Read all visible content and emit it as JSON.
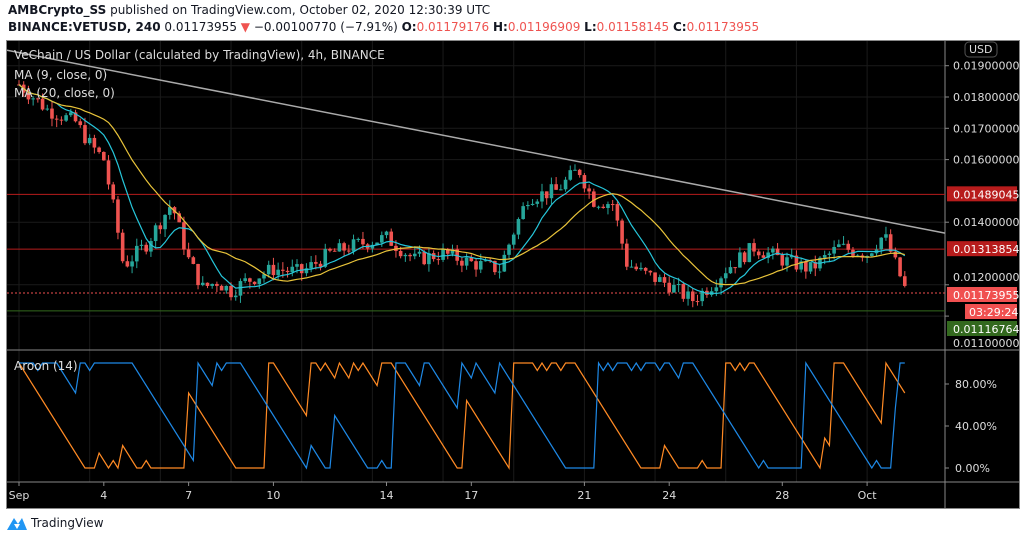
{
  "header": {
    "publisher": "AMBCrypto_SS",
    "published_text": "published on TradingView.com, October 02, 2020 12:30:39 UTC",
    "symbol": "BINANCE:VETUSD, 240",
    "last": "0.01173955",
    "change": "−0.00100770 (−7.91%)",
    "o_label": "O:",
    "o": "0.01179176",
    "h_label": "H:",
    "h": "0.01196909",
    "l_label": "L:",
    "l": "0.01158145",
    "c_label": "C:",
    "c": "0.01173955"
  },
  "chart_data": {
    "type": "candlestick",
    "title": "VeChain / US Dollar (calculated by TradingView), 4h, BINANCE",
    "indicators": [
      "MA (9, close, 0)",
      "MA (20, close, 0)"
    ],
    "aroon_label": "Aroon (14)",
    "currency": "USD",
    "price_ticks": [
      0.019,
      0.018,
      0.017,
      0.016,
      0.014,
      0.012,
      0.011
    ],
    "price_tick_labels": [
      "0.01900000",
      "0.01800000",
      "0.01700000",
      "0.01600000",
      "0.01400000",
      "0.01200000",
      "0.01100000"
    ],
    "levels": [
      {
        "value": 0.01489045,
        "label": "0.01489045",
        "color": "#b71c1c"
      },
      {
        "value": 0.01313854,
        "label": "0.01313854",
        "color": "#b71c1c"
      },
      {
        "value": 0.01173955,
        "label": "0.01173955",
        "color": "#f05050"
      },
      {
        "value": 0.01116764,
        "label": "0.01116764",
        "color": "#33691e"
      }
    ],
    "countdown": "03:29:24",
    "trendline": {
      "from": {
        "day": 0,
        "price": 0.0194
      },
      "to": {
        "day": 32.3,
        "price": 0.01365
      }
    },
    "close_path_days": [
      0,
      1,
      2,
      2.5,
      3,
      3.4,
      3.7,
      4.5,
      5.4,
      6,
      6.5,
      7,
      7.5,
      8,
      9,
      10,
      11,
      12,
      13,
      14,
      15,
      16,
      17,
      17.5,
      18,
      19,
      19.8,
      20.3,
      21,
      21.5,
      22,
      23,
      23.8,
      24.5,
      25,
      26,
      27,
      28,
      29,
      30,
      30.6,
      31.4
    ],
    "close_path_prices": [
      0.0184,
      0.0176,
      0.0172,
      0.0165,
      0.016,
      0.0142,
      0.0126,
      0.0133,
      0.0146,
      0.0128,
      0.0119,
      0.0121,
      0.0118,
      0.0121,
      0.0125,
      0.0124,
      0.013,
      0.0133,
      0.0135,
      0.0128,
      0.013,
      0.0127,
      0.0125,
      0.0137,
      0.0148,
      0.015,
      0.0157,
      0.0147,
      0.0146,
      0.0127,
      0.0124,
      0.012,
      0.0115,
      0.012,
      0.0125,
      0.0132,
      0.0128,
      0.0125,
      0.0132,
      0.013,
      0.0136,
      0.01174
    ],
    "aroon_ticks": [
      "80.00%",
      "40.00%",
      "0.00%"
    ],
    "x_ticks": [
      {
        "day": 0,
        "label": "Sep"
      },
      {
        "day": 3,
        "label": "4"
      },
      {
        "day": 6,
        "label": "7"
      },
      {
        "day": 9,
        "label": "10"
      },
      {
        "day": 13,
        "label": "14"
      },
      {
        "day": 16,
        "label": "17"
      },
      {
        "day": 20,
        "label": "21"
      },
      {
        "day": 23,
        "label": "24"
      },
      {
        "day": 27,
        "label": "28"
      },
      {
        "day": 30,
        "label": "Oct"
      }
    ],
    "colors": {
      "up": "#26a69a",
      "down": "#ef5350",
      "ma9": "#26c6da",
      "ma20": "#e8c33a",
      "aroon_up": "#ff8a24",
      "aroon_down": "#1e88e5"
    }
  },
  "footer": {
    "brand": "TradingView"
  }
}
